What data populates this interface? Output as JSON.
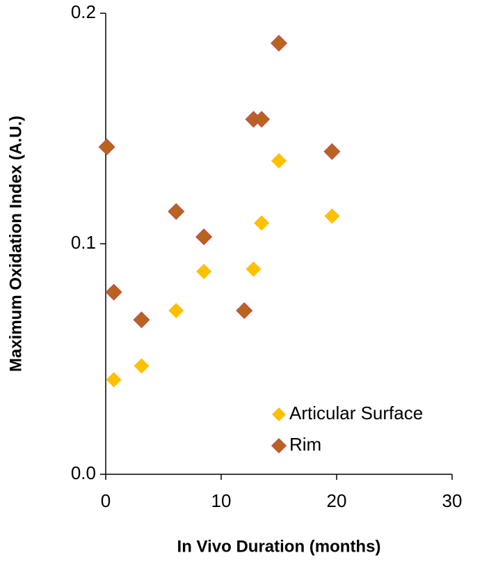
{
  "chart_data": {
    "type": "scatter",
    "xlabel": "In Vivo Duration (months)",
    "ylabel": "Maximum Oxidation Index (A.U.)",
    "xlim": [
      0,
      30
    ],
    "xticks": [
      0,
      10,
      20,
      30
    ],
    "ylim": [
      0,
      0.2
    ],
    "yticks": [
      {
        "value": 0,
        "label": "0.0"
      },
      0.1,
      0.2
    ],
    "legend": "bottom-right",
    "series": [
      {
        "name": "Articular Surface",
        "color": "#FFC000",
        "x": [
          0.7,
          3.1,
          6.1,
          8.5,
          12.8,
          13.5,
          15.0,
          19.6
        ],
        "values": [
          0.041,
          0.047,
          0.071,
          0.088,
          0.089,
          0.109,
          0.136,
          0.112
        ]
      },
      {
        "name": "Rim",
        "color": "#B8651B",
        "x": [
          0.1,
          0.7,
          3.1,
          6.1,
          8.5,
          12.0,
          12.8,
          13.5,
          15.0,
          19.6
        ],
        "values": [
          0.142,
          0.079,
          0.067,
          0.114,
          0.103,
          0.071,
          0.154,
          0.154,
          0.187,
          0.14
        ]
      }
    ]
  }
}
